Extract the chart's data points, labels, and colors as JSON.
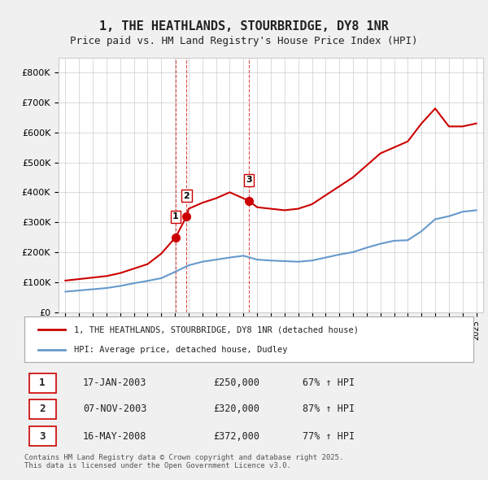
{
  "title": "1, THE HEATHLANDS, STOURBRIDGE, DY8 1NR",
  "subtitle": "Price paid vs. HM Land Registry's House Price Index (HPI)",
  "title_fontsize": 11,
  "subtitle_fontsize": 9,
  "ylabel_ticks": [
    "£0",
    "£100K",
    "£200K",
    "£300K",
    "£400K",
    "£500K",
    "£600K",
    "£700K",
    "£800K"
  ],
  "ytick_values": [
    0,
    100000,
    200000,
    300000,
    400000,
    500000,
    600000,
    700000,
    800000
  ],
  "ylim": [
    0,
    850000
  ],
  "xlim_start": 1994.5,
  "xlim_end": 2025.5,
  "xtick_years": [
    1995,
    1996,
    1997,
    1998,
    1999,
    2000,
    2001,
    2002,
    2003,
    2004,
    2005,
    2006,
    2007,
    2008,
    2009,
    2010,
    2011,
    2012,
    2013,
    2014,
    2015,
    2016,
    2017,
    2018,
    2019,
    2020,
    2021,
    2022,
    2023,
    2024,
    2025
  ],
  "red_color": "#cc0000",
  "blue_color": "#6699cc",
  "transaction_markers": [
    {
      "id": 1,
      "year": 2003.05,
      "price": 250000,
      "label": "1"
    },
    {
      "id": 2,
      "year": 2003.85,
      "price": 320000,
      "label": "2"
    },
    {
      "id": 3,
      "year": 2008.38,
      "price": 372000,
      "label": "3"
    }
  ],
  "legend_line1": "1, THE HEATHLANDS, STOURBRIDGE, DY8 1NR (detached house)",
  "legend_line2": "HPI: Average price, detached house, Dudley",
  "table_rows": [
    {
      "num": "1",
      "date": "17-JAN-2003",
      "price": "£250,000",
      "hpi": "67% ↑ HPI"
    },
    {
      "num": "2",
      "date": "07-NOV-2003",
      "price": "£320,000",
      "hpi": "87% ↑ HPI"
    },
    {
      "num": "3",
      "date": "16-MAY-2008",
      "price": "£372,000",
      "hpi": "77% ↑ HPI"
    }
  ],
  "footer": "Contains HM Land Registry data © Crown copyright and database right 2025.\nThis data is licensed under the Open Government Licence v3.0.",
  "background_color": "#f0f0f0",
  "plot_bg_color": "#ffffff",
  "hpi_years": [
    1995,
    1996,
    1997,
    1998,
    1999,
    2000,
    2001,
    2002,
    2003,
    2004,
    2005,
    2006,
    2007,
    2008,
    2009,
    2010,
    2011,
    2012,
    2013,
    2014,
    2015,
    2016,
    2017,
    2018,
    2019,
    2020,
    2021,
    2022,
    2023,
    2024,
    2025
  ],
  "hpi_values": [
    68000,
    72000,
    76000,
    80000,
    87000,
    96000,
    104000,
    113000,
    134000,
    156000,
    168000,
    175000,
    182000,
    188000,
    175000,
    172000,
    170000,
    168000,
    172000,
    182000,
    192000,
    200000,
    215000,
    228000,
    238000,
    240000,
    270000,
    310000,
    320000,
    335000,
    340000
  ],
  "red_years": [
    1995,
    1996,
    1997,
    1998,
    1999,
    2000,
    2001,
    2002,
    2003.05,
    2003.85,
    2004,
    2005,
    2006,
    2007,
    2008.38,
    2009,
    2010,
    2011,
    2012,
    2013,
    2014,
    2015,
    2016,
    2017,
    2018,
    2019,
    2020,
    2021,
    2022,
    2023,
    2024,
    2025
  ],
  "red_values": [
    105000,
    110000,
    115000,
    120000,
    130000,
    145000,
    160000,
    195000,
    250000,
    320000,
    345000,
    365000,
    380000,
    400000,
    372000,
    350000,
    345000,
    340000,
    345000,
    360000,
    390000,
    420000,
    450000,
    490000,
    530000,
    550000,
    570000,
    630000,
    680000,
    620000,
    620000,
    630000
  ]
}
